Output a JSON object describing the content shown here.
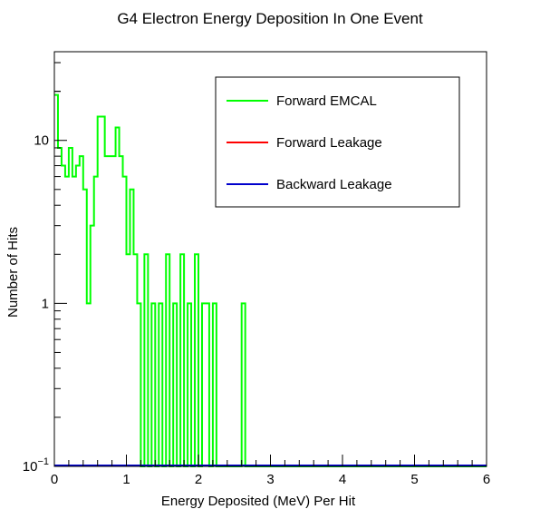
{
  "chart_data": {
    "type": "histogram",
    "title": "G4 Electron Energy Deposition In One Event",
    "xlabel": "Energy Deposited (MeV) Per Hit",
    "ylabel": "Number of Hits",
    "xlim": [
      0,
      6
    ],
    "ylim": [
      0.1,
      35
    ],
    "yscale": "log",
    "grid": false,
    "legend_position": "top-right",
    "bin_width": 0.05,
    "x_ticks": [
      {
        "value": 0,
        "label": "0"
      },
      {
        "value": 1,
        "label": "1"
      },
      {
        "value": 2,
        "label": "2"
      },
      {
        "value": 3,
        "label": "3"
      },
      {
        "value": 4,
        "label": "4"
      },
      {
        "value": 5,
        "label": "5"
      },
      {
        "value": 6,
        "label": "6"
      }
    ],
    "y_ticks": [
      {
        "value": 0.1,
        "base": "10",
        "exp": "−1"
      },
      {
        "value": 1,
        "base": "1",
        "exp": ""
      },
      {
        "value": 10,
        "base": "10",
        "exp": ""
      }
    ],
    "series": [
      {
        "name": "Forward EMCAL",
        "color": "#00ff00",
        "bins": [
          [
            0.0,
            19
          ],
          [
            0.05,
            9
          ],
          [
            0.1,
            7
          ],
          [
            0.15,
            6
          ],
          [
            0.2,
            9
          ],
          [
            0.25,
            6
          ],
          [
            0.3,
            7
          ],
          [
            0.35,
            8
          ],
          [
            0.4,
            5
          ],
          [
            0.45,
            1
          ],
          [
            0.5,
            3
          ],
          [
            0.55,
            6
          ],
          [
            0.6,
            14
          ],
          [
            0.65,
            14
          ],
          [
            0.7,
            8
          ],
          [
            0.75,
            8
          ],
          [
            0.8,
            8
          ],
          [
            0.85,
            12
          ],
          [
            0.9,
            8
          ],
          [
            0.95,
            6
          ],
          [
            1.0,
            2
          ],
          [
            1.05,
            5
          ],
          [
            1.1,
            2
          ],
          [
            1.15,
            1
          ],
          [
            1.25,
            2
          ],
          [
            1.35,
            1
          ],
          [
            1.45,
            1
          ],
          [
            1.55,
            2
          ],
          [
            1.65,
            1
          ],
          [
            1.75,
            2
          ],
          [
            1.85,
            1
          ],
          [
            1.95,
            2
          ],
          [
            2.05,
            1
          ],
          [
            2.1,
            1
          ],
          [
            2.2,
            1
          ],
          [
            2.6,
            1
          ]
        ]
      },
      {
        "name": "Forward Leakage",
        "color": "#ff0000",
        "bins": []
      },
      {
        "name": "Backward Leakage",
        "color": "#0000cc",
        "bins": []
      }
    ]
  }
}
